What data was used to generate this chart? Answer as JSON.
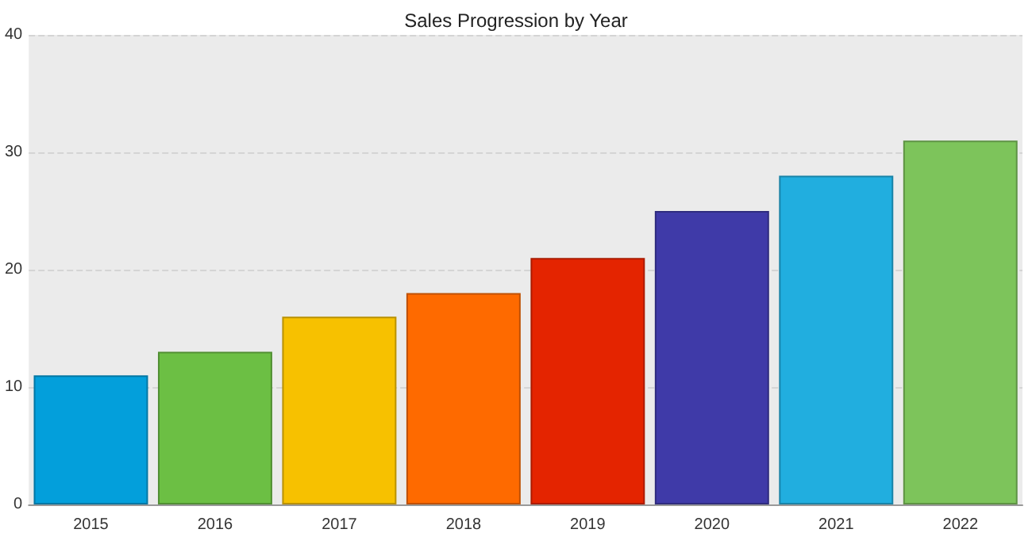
{
  "chart_data": {
    "type": "bar",
    "title": "Sales Progression by Year",
    "categories": [
      "2015",
      "2016",
      "2017",
      "2018",
      "2019",
      "2020",
      "2021",
      "2022"
    ],
    "values": [
      11,
      13,
      16,
      18,
      21,
      25,
      28,
      31
    ],
    "colors": [
      "#039fdb",
      "#6cbf44",
      "#f7c100",
      "#fe6a00",
      "#e42400",
      "#3f3aa8",
      "#21aedf",
      "#7dc45b"
    ],
    "ylim": [
      0,
      40
    ],
    "yticks": [
      0,
      10,
      20,
      30,
      40
    ],
    "grid": "y"
  }
}
